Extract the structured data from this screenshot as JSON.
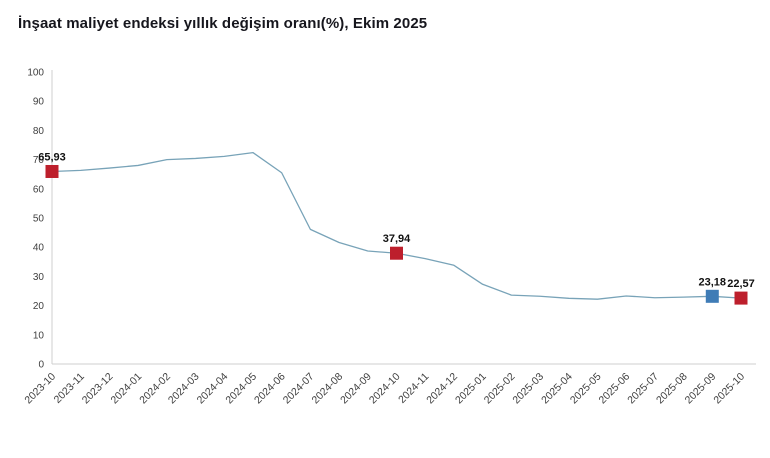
{
  "page": {
    "title": "İnşaat maliyet endeksi yıllık değişim oranı(%), Ekim 2025"
  },
  "chart_data": {
    "type": "line",
    "title": "İnşaat maliyet endeksi yıllık değişim oranı(%), Ekim 2025",
    "x": [
      "2023-10",
      "2023-11",
      "2023-12",
      "2024-01",
      "2024-02",
      "2024-03",
      "2024-04",
      "2024-05",
      "2024-06",
      "2024-07",
      "2024-08",
      "2024-09",
      "2024-10",
      "2024-11",
      "2024-12",
      "2025-01",
      "2025-02",
      "2025-03",
      "2025-04",
      "2025-05",
      "2025-06",
      "2025-07",
      "2025-08",
      "2025-09",
      "2025-10"
    ],
    "series": [
      {
        "name": "Yıllık değişim oranı (%)",
        "values": [
          65.93,
          66.3,
          67.1,
          68.0,
          70.0,
          70.4,
          71.1,
          72.4,
          65.5,
          46.1,
          41.6,
          38.7,
          37.94,
          36.1,
          33.8,
          27.3,
          23.6,
          23.2,
          22.5,
          22.2,
          23.3,
          22.7,
          22.9,
          23.18,
          22.57
        ]
      }
    ],
    "ylim": [
      0,
      100
    ],
    "ytick_step": 10,
    "grid": false,
    "legend_position": "none",
    "annotated_points": [
      {
        "x": "2023-10",
        "value": 65.93,
        "label": "65,93",
        "marker": "red"
      },
      {
        "x": "2024-10",
        "value": 37.94,
        "label": "37,94",
        "marker": "red"
      },
      {
        "x": "2025-09",
        "value": 23.18,
        "label": "23,18",
        "marker": "blue"
      },
      {
        "x": "2025-10",
        "value": 22.57,
        "label": "22,57",
        "marker": "red"
      }
    ],
    "colors": {
      "line": "#78a3b8",
      "marker_red": "#bd1f2c",
      "marker_blue": "#3f7cb6",
      "axis": "#cfcfcf",
      "tick_text": "#404040",
      "data_label_text": "#111111",
      "title_text": "#16161d"
    }
  }
}
